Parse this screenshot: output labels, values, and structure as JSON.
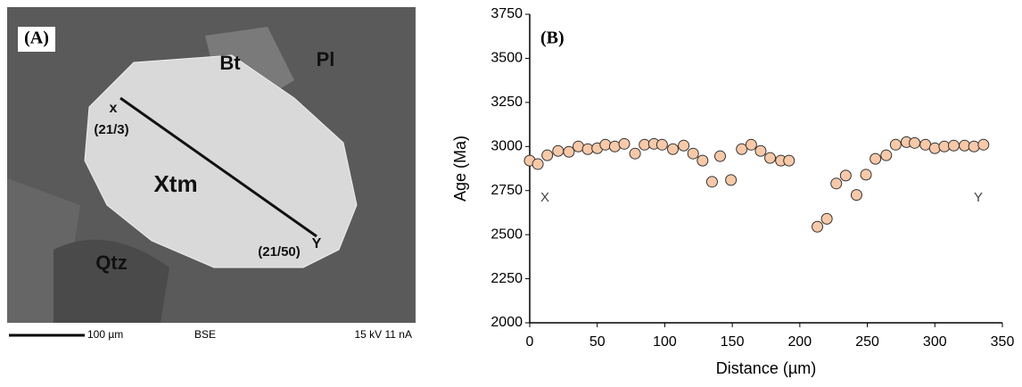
{
  "image_panel": {
    "label": "(A)",
    "mineral_labels": [
      "Bt",
      "Pl",
      "Xtm",
      "Qtz"
    ],
    "profile_start": "x",
    "profile_start_note": "(21/3)",
    "profile_end": "Y",
    "profile_end_note": "(21/50)",
    "scale_bar": "100 µm",
    "mode": "BSE",
    "conditions": "15 kV 11 nA"
  },
  "chart_data": {
    "type": "scatter",
    "panel_label": "(B)",
    "x_label": "Distance (µm)",
    "y_label": "Age (Ma)",
    "annotations": [
      "X",
      "Y"
    ],
    "xlim": [
      0,
      350
    ],
    "xticks": [
      0,
      50,
      100,
      150,
      200,
      250,
      300,
      350
    ],
    "ylim": [
      2000,
      3750
    ],
    "yticks": [
      2000,
      2250,
      2500,
      2750,
      3000,
      3250,
      3500,
      3750
    ],
    "color": "#f7c9a9",
    "x": [
      0,
      6,
      13,
      21,
      29,
      36,
      43,
      50,
      56,
      63,
      70,
      78,
      85,
      92,
      98,
      106,
      114,
      121,
      128,
      135,
      141,
      149,
      157,
      164,
      171,
      178,
      186,
      192,
      213,
      220,
      227,
      234,
      242,
      249,
      256,
      264,
      271,
      279,
      285,
      293,
      300,
      307,
      314,
      322,
      329,
      336
    ],
    "values": [
      2920,
      2900,
      2950,
      2975,
      2970,
      3000,
      2985,
      2990,
      3010,
      3000,
      3015,
      2960,
      3010,
      3015,
      3010,
      2985,
      3005,
      2960,
      2920,
      2800,
      2945,
      2810,
      2985,
      3010,
      2975,
      2935,
      2920,
      2920,
      2545,
      2590,
      2790,
      2835,
      2725,
      2840,
      2930,
      2950,
      3010,
      3025,
      3020,
      3010,
      2990,
      3000,
      3005,
      3005,
      3000,
      3010
    ]
  }
}
